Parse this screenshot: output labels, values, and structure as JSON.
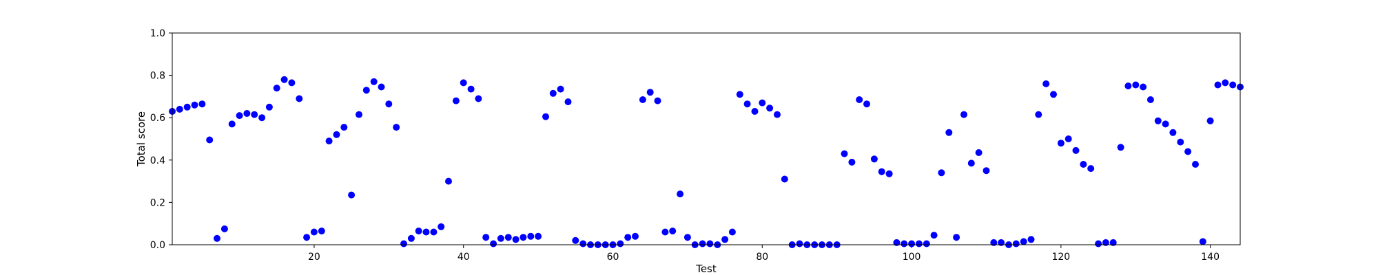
{
  "chart_data": {
    "type": "scatter",
    "title": "",
    "xlabel": "Test",
    "ylabel": "Total score",
    "xlim": [
      1,
      144
    ],
    "ylim": [
      0,
      1.0
    ],
    "x_ticks": [
      20,
      40,
      60,
      80,
      100,
      120,
      140
    ],
    "y_ticks": [
      0.0,
      0.2,
      0.4,
      0.6,
      0.8,
      1.0
    ],
    "x_tick_labels": [
      "20",
      "40",
      "60",
      "80",
      "100",
      "120",
      "140"
    ],
    "y_tick_labels": [
      "0.0",
      "0.2",
      "0.4",
      "0.6",
      "0.8",
      "1.0"
    ],
    "grid": false,
    "legend": "none",
    "marker_color": "#0000ff",
    "points": [
      [
        1,
        0.63
      ],
      [
        2,
        0.64
      ],
      [
        3,
        0.65
      ],
      [
        4,
        0.66
      ],
      [
        5,
        0.665
      ],
      [
        6,
        0.495
      ],
      [
        7,
        0.03
      ],
      [
        8,
        0.075
      ],
      [
        9,
        0.57
      ],
      [
        10,
        0.61
      ],
      [
        11,
        0.62
      ],
      [
        12,
        0.615
      ],
      [
        13,
        0.6
      ],
      [
        14,
        0.65
      ],
      [
        15,
        0.74
      ],
      [
        16,
        0.78
      ],
      [
        17,
        0.765
      ],
      [
        18,
        0.69
      ],
      [
        19,
        0.035
      ],
      [
        20,
        0.06
      ],
      [
        21,
        0.065
      ],
      [
        22,
        0.49
      ],
      [
        23,
        0.52
      ],
      [
        24,
        0.555
      ],
      [
        25,
        0.235
      ],
      [
        26,
        0.615
      ],
      [
        27,
        0.73
      ],
      [
        28,
        0.77
      ],
      [
        29,
        0.745
      ],
      [
        30,
        0.665
      ],
      [
        31,
        0.555
      ],
      [
        32,
        0.005
      ],
      [
        33,
        0.03
      ],
      [
        34,
        0.065
      ],
      [
        35,
        0.06
      ],
      [
        36,
        0.06
      ],
      [
        37,
        0.085
      ],
      [
        38,
        0.3
      ],
      [
        39,
        0.68
      ],
      [
        40,
        0.765
      ],
      [
        41,
        0.735
      ],
      [
        42,
        0.69
      ],
      [
        43,
        0.035
      ],
      [
        44,
        0.005
      ],
      [
        45,
        0.03
      ],
      [
        46,
        0.035
      ],
      [
        47,
        0.025
      ],
      [
        48,
        0.035
      ],
      [
        49,
        0.04
      ],
      [
        50,
        0.04
      ],
      [
        51,
        0.605
      ],
      [
        52,
        0.715
      ],
      [
        53,
        0.735
      ],
      [
        54,
        0.675
      ],
      [
        55,
        0.02
      ],
      [
        56,
        0.005
      ],
      [
        57,
        0.0
      ],
      [
        58,
        0.0
      ],
      [
        59,
        0.0
      ],
      [
        60,
        0.0
      ],
      [
        61,
        0.005
      ],
      [
        62,
        0.035
      ],
      [
        63,
        0.04
      ],
      [
        64,
        0.685
      ],
      [
        65,
        0.72
      ],
      [
        66,
        0.68
      ],
      [
        67,
        0.06
      ],
      [
        68,
        0.065
      ],
      [
        69,
        0.24
      ],
      [
        70,
        0.035
      ],
      [
        71,
        0.0
      ],
      [
        72,
        0.005
      ],
      [
        73,
        0.005
      ],
      [
        74,
        0.0
      ],
      [
        75,
        0.025
      ],
      [
        76,
        0.06
      ],
      [
        77,
        0.71
      ],
      [
        78,
        0.665
      ],
      [
        79,
        0.63
      ],
      [
        80,
        0.67
      ],
      [
        81,
        0.645
      ],
      [
        82,
        0.615
      ],
      [
        83,
        0.31
      ],
      [
        84,
        0.0
      ],
      [
        85,
        0.005
      ],
      [
        86,
        0.0
      ],
      [
        87,
        0.0
      ],
      [
        88,
        0.0
      ],
      [
        89,
        0.0
      ],
      [
        90,
        0.0
      ],
      [
        91,
        0.43
      ],
      [
        92,
        0.39
      ],
      [
        93,
        0.685
      ],
      [
        94,
        0.665
      ],
      [
        95,
        0.405
      ],
      [
        96,
        0.345
      ],
      [
        97,
        0.335
      ],
      [
        98,
        0.01
      ],
      [
        99,
        0.005
      ],
      [
        100,
        0.005
      ],
      [
        101,
        0.005
      ],
      [
        102,
        0.005
      ],
      [
        103,
        0.045
      ],
      [
        104,
        0.34
      ],
      [
        105,
        0.53
      ],
      [
        106,
        0.035
      ],
      [
        107,
        0.615
      ],
      [
        108,
        0.385
      ],
      [
        109,
        0.435
      ],
      [
        110,
        0.35
      ],
      [
        111,
        0.01
      ],
      [
        112,
        0.01
      ],
      [
        113,
        0.0
      ],
      [
        114,
        0.005
      ],
      [
        115,
        0.015
      ],
      [
        116,
        0.025
      ],
      [
        117,
        0.615
      ],
      [
        118,
        0.76
      ],
      [
        119,
        0.71
      ],
      [
        120,
        0.48
      ],
      [
        121,
        0.5
      ],
      [
        122,
        0.445
      ],
      [
        123,
        0.38
      ],
      [
        124,
        0.36
      ],
      [
        125,
        0.005
      ],
      [
        126,
        0.01
      ],
      [
        127,
        0.01
      ],
      [
        128,
        0.46
      ],
      [
        129,
        0.75
      ],
      [
        130,
        0.755
      ],
      [
        131,
        0.745
      ],
      [
        132,
        0.685
      ],
      [
        133,
        0.585
      ],
      [
        134,
        0.57
      ],
      [
        135,
        0.53
      ],
      [
        136,
        0.485
      ],
      [
        137,
        0.44
      ],
      [
        138,
        0.38
      ],
      [
        139,
        0.015
      ],
      [
        140,
        0.585
      ],
      [
        141,
        0.755
      ],
      [
        142,
        0.765
      ],
      [
        143,
        0.755
      ],
      [
        144,
        0.745
      ]
    ]
  }
}
